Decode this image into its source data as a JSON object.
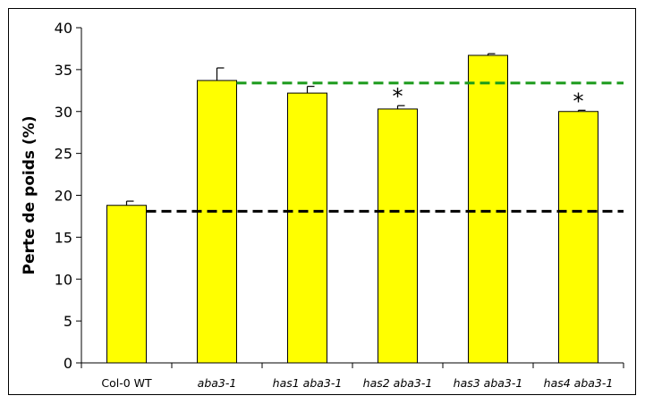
{
  "chart_data": {
    "type": "bar",
    "title": "",
    "xlabel": "",
    "ylabel": "Perte de poids (%)",
    "ylim": [
      0,
      40
    ],
    "yticks": [
      0,
      5,
      10,
      15,
      20,
      25,
      30,
      35,
      40
    ],
    "grid": false,
    "categories": [
      "Col-0 WT",
      "aba3-1",
      "has1 aba3-1",
      "has2 aba3-1",
      "has3 aba3-1",
      "has4 aba3-1"
    ],
    "category_italic": [
      false,
      true,
      true,
      true,
      true,
      true
    ],
    "values": [
      18.8,
      33.7,
      32.2,
      30.3,
      36.7,
      30.0
    ],
    "error_plus": [
      0.5,
      1.5,
      0.8,
      0.4,
      0.2,
      0.15
    ],
    "significance": [
      "",
      "",
      "",
      "*",
      "",
      "*"
    ],
    "reference_lines": [
      {
        "value": 18.1,
        "color": "#000000",
        "from_category": 0
      },
      {
        "value": 33.4,
        "color": "#1a9a1a",
        "from_category": 1
      }
    ],
    "bar_color": "#ffff00"
  }
}
